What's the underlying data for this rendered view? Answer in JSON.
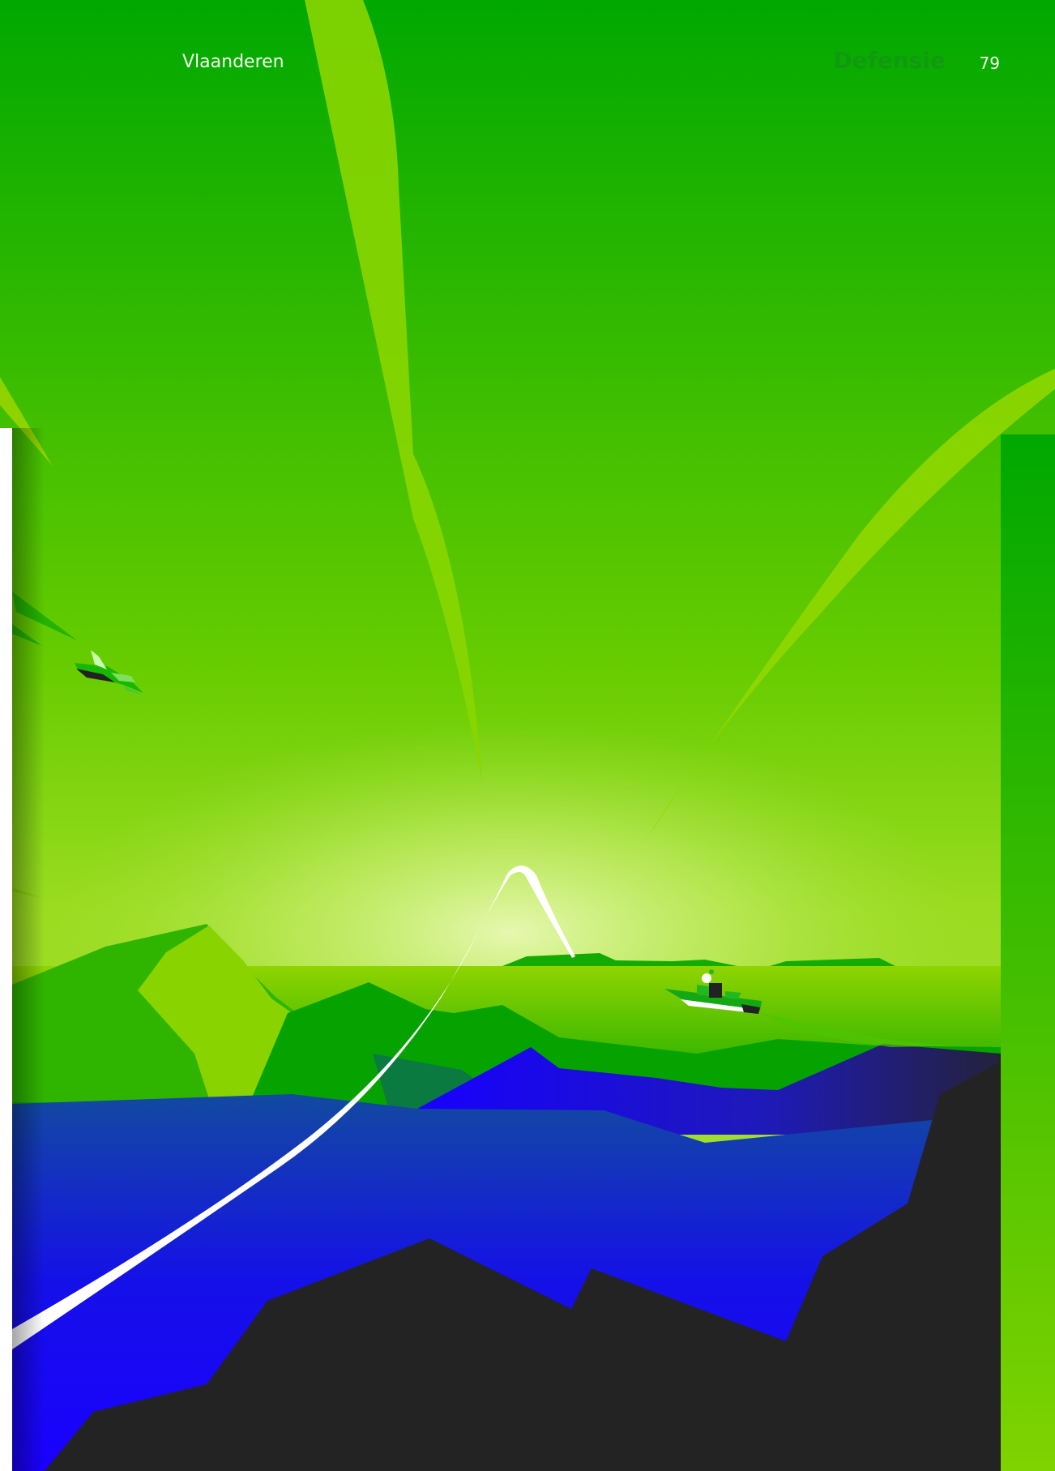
{
  "header": {
    "region": "Vlaanderen",
    "section": "Defensie",
    "page_number": "79"
  },
  "illustration": {
    "sky_top_color": "#00a800",
    "sky_mid_color": "#8ed600",
    "horizon_glow_color": "#d8f59a",
    "water_color": "#1600f2",
    "rock_color": "#222222",
    "trail_color": "#ffffff",
    "objects": [
      "fighter-jet",
      "frigate",
      "missile-trail",
      "contrails"
    ]
  }
}
